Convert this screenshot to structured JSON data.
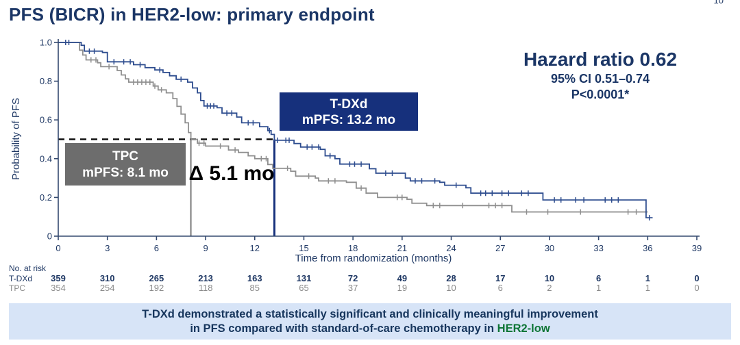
{
  "page_number": "10",
  "title": "PFS (BICR) in HER2-low: primary endpoint",
  "stats": {
    "hazard_ratio": "Hazard ratio 0.62",
    "confidence_interval": "95% CI 0.51–0.74",
    "p_value": "P<0.0001*"
  },
  "annotations": {
    "tdxd_box": {
      "line1": "T-DXd",
      "line2": "mPFS: 13.2 mo",
      "fill": "#16307c"
    },
    "tpc_box": {
      "line1": "TPC",
      "line2": "mPFS: 8.1 mo",
      "fill": "#6d6d6d"
    },
    "delta_label": "Δ 5.1 mo"
  },
  "banner": {
    "line1": "T-DXd demonstrated a statistically significant and clinically meaningful improvement",
    "line2_prefix": "in PFS compared with standard-of-care chemotherapy in ",
    "line2_highlight": "HER2-low",
    "highlight_color": "#0e7536",
    "background": "#d7e4f7"
  },
  "chart_data": {
    "type": "line",
    "subtype": "kaplan-meier-step",
    "title": "",
    "xlabel": "Time from randomization (months)",
    "ylabel": "Probability of PFS",
    "xlim": [
      0,
      39
    ],
    "ylim": [
      0,
      1.0
    ],
    "xticks": [
      0,
      3,
      6,
      9,
      12,
      15,
      18,
      21,
      24,
      27,
      30,
      33,
      36,
      39
    ],
    "yticks": [
      {
        "v": 0,
        "label": "0"
      },
      {
        "v": 0.2,
        "label": "0.2"
      },
      {
        "v": 0.4,
        "label": "0.4"
      },
      {
        "v": 0.6,
        "label": "0.6"
      },
      {
        "v": 0.8,
        "label": "0.8"
      },
      {
        "v": 1.0,
        "label": "1.0"
      }
    ],
    "grid": false,
    "reference_lines": {
      "median_probability": 0.5,
      "dash_line_x_range": [
        0,
        13.2
      ],
      "tdxd_median_x": 13.2,
      "tpc_median_x": 8.1
    },
    "series": [
      {
        "name": "TPC",
        "color": "#8f8f8f",
        "median_pfs_months": 8.1,
        "points": [
          [
            0,
            1.0
          ],
          [
            1.15,
            1.0
          ],
          [
            1.3,
            0.96
          ],
          [
            1.5,
            0.935
          ],
          [
            1.7,
            0.91
          ],
          [
            2.4,
            0.895
          ],
          [
            2.6,
            0.875
          ],
          [
            3.6,
            0.855
          ],
          [
            3.85,
            0.832
          ],
          [
            4.1,
            0.812
          ],
          [
            4.3,
            0.795
          ],
          [
            5.8,
            0.775
          ],
          [
            6.1,
            0.755
          ],
          [
            6.6,
            0.74
          ],
          [
            7.0,
            0.71
          ],
          [
            7.25,
            0.67
          ],
          [
            7.5,
            0.63
          ],
          [
            7.75,
            0.585
          ],
          [
            7.95,
            0.535
          ],
          [
            8.1,
            0.5
          ],
          [
            8.5,
            0.48
          ],
          [
            9.0,
            0.465
          ],
          [
            10.4,
            0.445
          ],
          [
            11.0,
            0.432
          ],
          [
            11.6,
            0.415
          ],
          [
            12.0,
            0.4
          ],
          [
            12.8,
            0.37
          ],
          [
            13.1,
            0.35
          ],
          [
            14.2,
            0.335
          ],
          [
            14.5,
            0.31
          ],
          [
            15.7,
            0.3
          ],
          [
            15.9,
            0.285
          ],
          [
            17.6,
            0.278
          ],
          [
            18.2,
            0.248
          ],
          [
            18.8,
            0.222
          ],
          [
            19.5,
            0.2
          ],
          [
            21.3,
            0.19
          ],
          [
            21.6,
            0.17
          ],
          [
            22.5,
            0.158
          ],
          [
            27.7,
            0.125
          ],
          [
            36.0,
            0.125
          ]
        ],
        "censor_times": [
          2.0,
          2.3,
          3.1,
          4.6,
          4.85,
          5.1,
          5.35,
          5.6,
          5.9,
          6.3,
          8.6,
          8.9,
          9.9,
          10.8,
          12.4,
          12.7,
          14.0,
          15.3,
          16.5,
          16.9,
          18.5,
          20.7,
          21.0,
          22.9,
          23.3,
          24.7,
          26.3,
          26.7,
          27.1,
          28.6,
          29.9,
          31.9,
          34.8,
          35.3,
          35.9
        ]
      },
      {
        "name": "T-DXd",
        "color": "#2e4d8f",
        "median_pfs_months": 13.2,
        "points": [
          [
            0,
            1.0
          ],
          [
            1.25,
            1.0
          ],
          [
            1.4,
            0.985
          ],
          [
            1.6,
            0.955
          ],
          [
            2.7,
            0.948
          ],
          [
            3.0,
            0.9
          ],
          [
            4.6,
            0.885
          ],
          [
            5.3,
            0.87
          ],
          [
            5.9,
            0.858
          ],
          [
            6.4,
            0.845
          ],
          [
            6.8,
            0.828
          ],
          [
            7.2,
            0.81
          ],
          [
            7.9,
            0.795
          ],
          [
            8.2,
            0.765
          ],
          [
            8.5,
            0.74
          ],
          [
            8.7,
            0.7
          ],
          [
            8.9,
            0.672
          ],
          [
            9.7,
            0.663
          ],
          [
            10.0,
            0.635
          ],
          [
            10.9,
            0.615
          ],
          [
            11.2,
            0.585
          ],
          [
            12.3,
            0.565
          ],
          [
            12.8,
            0.545
          ],
          [
            13.0,
            0.525
          ],
          [
            13.2,
            0.495
          ],
          [
            14.4,
            0.478
          ],
          [
            14.8,
            0.46
          ],
          [
            16.0,
            0.448
          ],
          [
            16.3,
            0.415
          ],
          [
            16.9,
            0.4
          ],
          [
            17.2,
            0.372
          ],
          [
            19.0,
            0.348
          ],
          [
            19.4,
            0.325
          ],
          [
            21.2,
            0.3
          ],
          [
            21.5,
            0.285
          ],
          [
            23.3,
            0.278
          ],
          [
            23.6,
            0.263
          ],
          [
            24.9,
            0.25
          ],
          [
            25.2,
            0.222
          ],
          [
            29.4,
            0.222
          ],
          [
            29.6,
            0.187
          ],
          [
            35.8,
            0.187
          ],
          [
            35.9,
            0.095
          ],
          [
            36.3,
            0.095
          ]
        ],
        "censor_times": [
          0.45,
          0.65,
          1.9,
          2.2,
          3.4,
          4.0,
          4.4,
          5.0,
          6.2,
          7.5,
          9.1,
          9.3,
          9.5,
          10.3,
          10.6,
          11.6,
          11.9,
          12.9,
          13.4,
          13.9,
          14.1,
          15.2,
          15.5,
          15.9,
          16.6,
          17.8,
          18.1,
          18.5,
          20.0,
          20.4,
          21.8,
          22.2,
          23.0,
          24.3,
          25.8,
          26.1,
          26.5,
          27.1,
          27.5,
          28.3,
          28.7,
          30.3,
          30.7,
          31.6,
          32.1,
          33.4,
          33.8,
          34.2,
          36.1
        ]
      }
    ]
  },
  "risk_table": {
    "label": "No. at risk",
    "rows": [
      {
        "name": "T-DXd",
        "values": [
          359,
          310,
          265,
          213,
          163,
          131,
          72,
          49,
          28,
          17,
          10,
          6,
          1,
          0
        ]
      },
      {
        "name": "TPC",
        "values": [
          354,
          254,
          192,
          118,
          85,
          65,
          37,
          19,
          10,
          6,
          2,
          1,
          1,
          0
        ]
      }
    ]
  },
  "colors": {
    "title_text": "#1b3666",
    "axis": "#33486e",
    "tdxd_curve": "#2e4d8f",
    "tpc_curve": "#8f8f8f",
    "dashed_reference": "#111111",
    "tpc_vline": "#7a7a7a",
    "tdxd_vline": "#16307c"
  }
}
